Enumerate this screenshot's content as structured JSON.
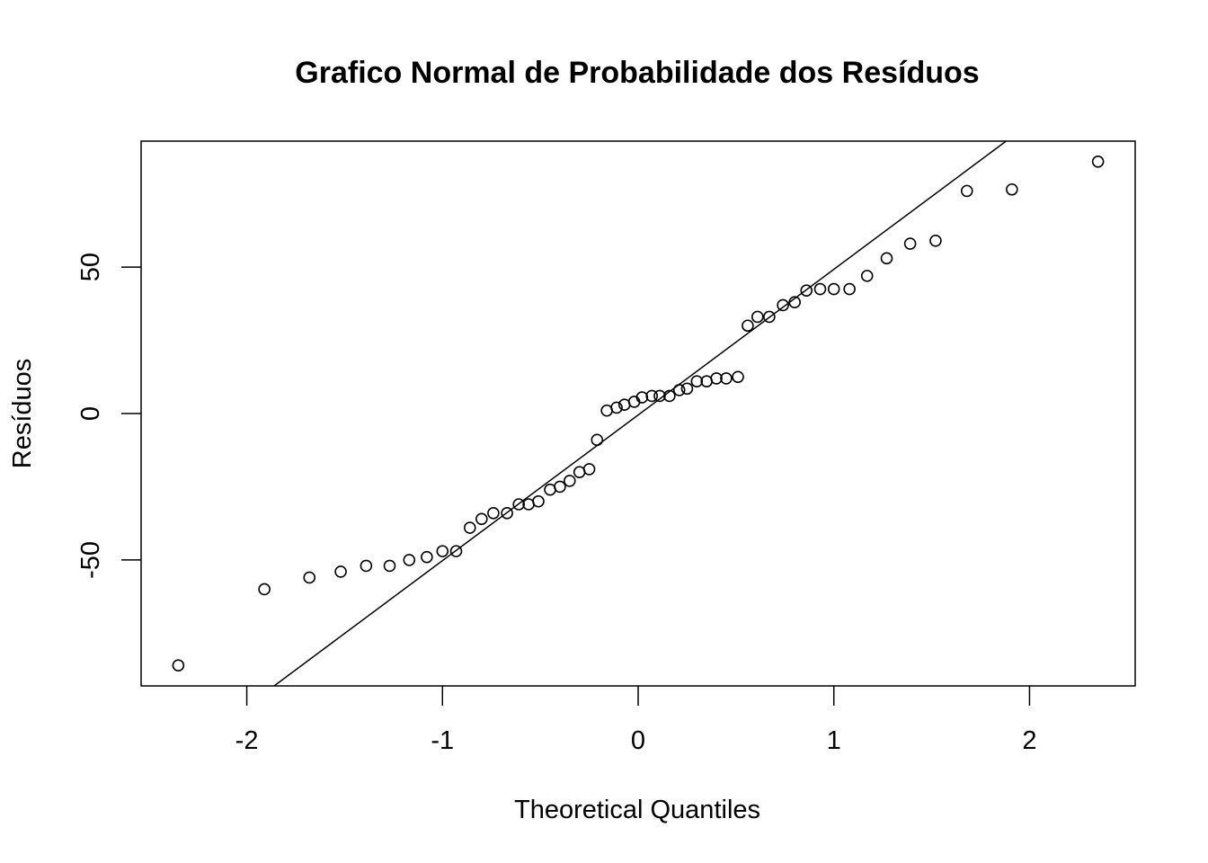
{
  "chart_data": {
    "type": "scatter",
    "title": "Grafico Normal de Probabilidade dos Resíduos",
    "xlabel": "Theoretical Quantiles",
    "ylabel": "Resíduos",
    "xlim": [
      -2.54,
      2.54
    ],
    "ylim": [
      -93,
      93
    ],
    "xticks": [
      -2,
      -1,
      0,
      1,
      2
    ],
    "xtick_labels": [
      "-2",
      "-1",
      "0",
      "1",
      "2"
    ],
    "yticks": [
      -50,
      0,
      50
    ],
    "ytick_labels": [
      "-50",
      "0",
      "50"
    ],
    "grid": false,
    "reference_line": {
      "x": [
        -1.86,
        1.88
      ],
      "y": [
        -93,
        93
      ]
    },
    "points": [
      {
        "x": -2.35,
        "y": -86
      },
      {
        "x": -1.91,
        "y": -60
      },
      {
        "x": -1.68,
        "y": -56
      },
      {
        "x": -1.52,
        "y": -54
      },
      {
        "x": -1.39,
        "y": -52
      },
      {
        "x": -1.27,
        "y": -52
      },
      {
        "x": -1.17,
        "y": -50
      },
      {
        "x": -1.08,
        "y": -49
      },
      {
        "x": -1.0,
        "y": -47
      },
      {
        "x": -0.93,
        "y": -47
      },
      {
        "x": -0.86,
        "y": -39
      },
      {
        "x": -0.8,
        "y": -36
      },
      {
        "x": -0.74,
        "y": -34
      },
      {
        "x": -0.67,
        "y": -34
      },
      {
        "x": -0.61,
        "y": -31
      },
      {
        "x": -0.56,
        "y": -31
      },
      {
        "x": -0.51,
        "y": -30
      },
      {
        "x": -0.45,
        "y": -26
      },
      {
        "x": -0.4,
        "y": -25
      },
      {
        "x": -0.35,
        "y": -23
      },
      {
        "x": -0.3,
        "y": -20
      },
      {
        "x": -0.25,
        "y": -19
      },
      {
        "x": -0.21,
        "y": -9
      },
      {
        "x": -0.16,
        "y": 1
      },
      {
        "x": -0.11,
        "y": 2
      },
      {
        "x": -0.07,
        "y": 3
      },
      {
        "x": -0.02,
        "y": 4
      },
      {
        "x": 0.02,
        "y": 5.5
      },
      {
        "x": 0.07,
        "y": 6
      },
      {
        "x": 0.11,
        "y": 6
      },
      {
        "x": 0.16,
        "y": 6
      },
      {
        "x": 0.21,
        "y": 8
      },
      {
        "x": 0.25,
        "y": 8.5
      },
      {
        "x": 0.3,
        "y": 11
      },
      {
        "x": 0.35,
        "y": 11
      },
      {
        "x": 0.4,
        "y": 12
      },
      {
        "x": 0.45,
        "y": 12
      },
      {
        "x": 0.51,
        "y": 12.5
      },
      {
        "x": 0.56,
        "y": 30
      },
      {
        "x": 0.61,
        "y": 33
      },
      {
        "x": 0.67,
        "y": 33
      },
      {
        "x": 0.74,
        "y": 37
      },
      {
        "x": 0.8,
        "y": 38
      },
      {
        "x": 0.86,
        "y": 42
      },
      {
        "x": 0.93,
        "y": 42.5
      },
      {
        "x": 1.0,
        "y": 42.5
      },
      {
        "x": 1.08,
        "y": 42.5
      },
      {
        "x": 1.17,
        "y": 47
      },
      {
        "x": 1.27,
        "y": 53
      },
      {
        "x": 1.39,
        "y": 58
      },
      {
        "x": 1.52,
        "y": 59
      },
      {
        "x": 1.68,
        "y": 76
      },
      {
        "x": 1.91,
        "y": 76.5
      },
      {
        "x": 2.35,
        "y": 86
      }
    ]
  }
}
